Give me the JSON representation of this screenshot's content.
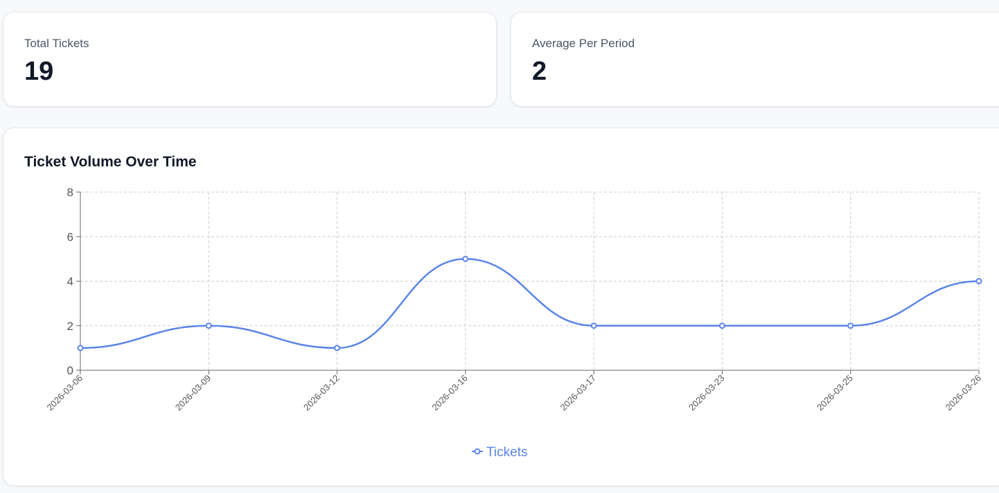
{
  "stats": {
    "total_label": "Total Tickets",
    "total_value": "19",
    "avg_label": "Average Per Period",
    "avg_value": "2"
  },
  "chart": {
    "title": "Ticket Volume Over Time"
  },
  "colors": {
    "series": "#5b84e8",
    "grid": "#cccccc",
    "axis": "#666666"
  },
  "chart_data": {
    "type": "line",
    "title": "Ticket Volume Over Time",
    "xlabel": "",
    "ylabel": "",
    "categories": [
      "2026-03-06",
      "2026-03-09",
      "2026-03-12",
      "2026-03-16",
      "2026-03-17",
      "2026-03-23",
      "2026-03-25",
      "2026-03-26"
    ],
    "series": [
      {
        "name": "Tickets",
        "values": [
          1,
          2,
          1,
          5,
          2,
          2,
          2,
          4
        ]
      }
    ],
    "ylim": [
      0,
      8
    ],
    "yticks": [
      0,
      2,
      4,
      6,
      8
    ],
    "grid": true,
    "curve": "smooth",
    "legend": "bottom-center"
  }
}
